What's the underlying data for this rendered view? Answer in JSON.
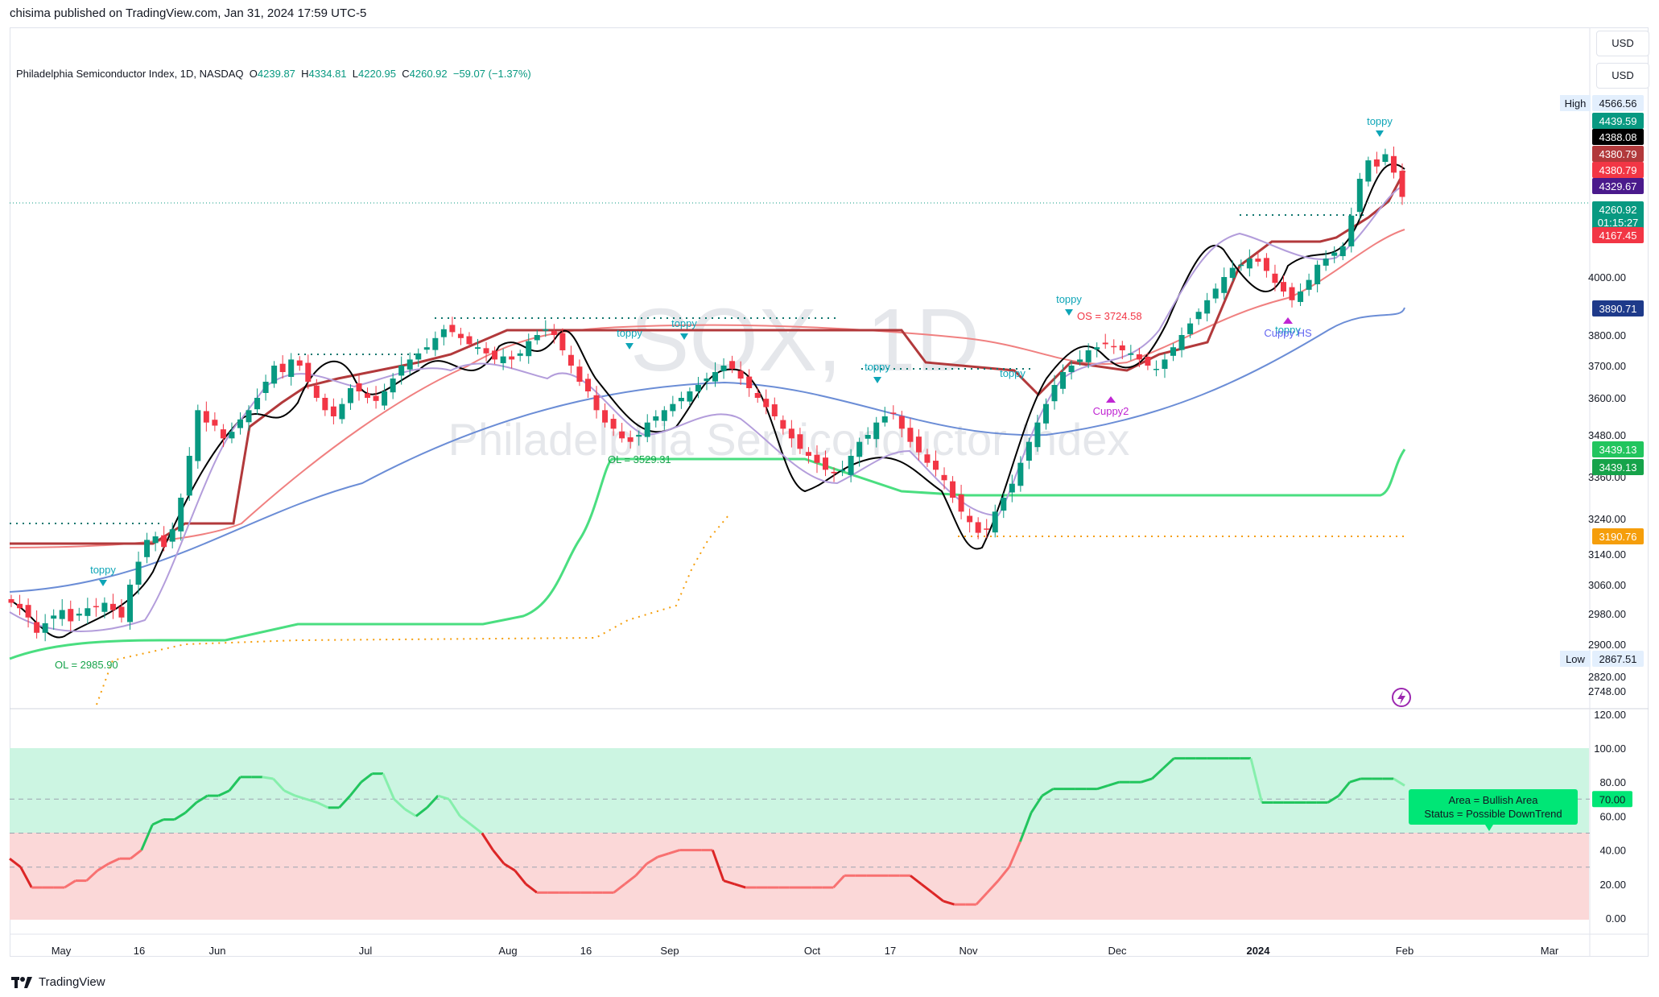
{
  "header": {
    "published": "chisima published on TradingView.com, Jan 31, 2024 17:59 UTC-5",
    "currency_1": "USD",
    "currency_2": "USD"
  },
  "legend": {
    "symbol": "Philadelphia Semiconductor Index, 1D, NASDAQ",
    "open_label": "O",
    "open": "4239.87",
    "high_label": "H",
    "high": "4334.81",
    "low_label": "L",
    "low": "4220.95",
    "close_label": "C",
    "close": "4260.92",
    "change": "−59.07 (−1.37%)"
  },
  "watermark": {
    "ticker": "SOX, 1D",
    "name": "Philadelphia Semiconductor Index"
  },
  "footer": {
    "brand": "TradingView"
  },
  "colors": {
    "up": "#089981",
    "down": "#f23645",
    "bull_area": "#ccf5e2",
    "bear_area": "#fbd8d8"
  },
  "chart_data": [
    {
      "type": "candlestick",
      "title": "SOX, 1D",
      "y_axis_ticks": [
        2748,
        2820,
        2900,
        2980,
        3060,
        3140,
        3240,
        3360,
        3480,
        3600,
        3700,
        3800,
        4000
      ],
      "y_axis_tick_labels": [
        "2748.00",
        "2820.00",
        "2900.00",
        "2980.00",
        "3060.00",
        "3140.00",
        "3240.00",
        "3360.00",
        "3480.00",
        "3600.00",
        "3700.00",
        "3800.00",
        "4000.00"
      ],
      "x_axis_labels": [
        "May",
        "16",
        "Jun",
        "Jul",
        "Aug",
        "16",
        "Sep",
        "Oct",
        "17",
        "Nov",
        "Dec",
        "2024",
        "Feb",
        "Mar"
      ],
      "price_tags": [
        {
          "label": "High",
          "value": "4566.56",
          "color": "#e3effd",
          "text": "#131722"
        },
        {
          "value": "4439.59",
          "color": "#089981",
          "text": "#ffffff"
        },
        {
          "value": "4388.08",
          "color": "#000000",
          "text": "#ffffff"
        },
        {
          "value": "4380.79",
          "color": "#b2393b",
          "text": "#ffffff"
        },
        {
          "value": "4380.79",
          "color": "#f23645",
          "text": "#ffffff"
        },
        {
          "value": "4329.67",
          "color": "#4a1a8c",
          "text": "#ffffff"
        },
        {
          "value": "4260.92",
          "sub": "01:15:27",
          "color": "#089981",
          "text": "#ffffff"
        },
        {
          "value": "4167.45",
          "color": "#f23645",
          "text": "#ffffff"
        },
        {
          "value": "3890.71",
          "color": "#1e3a8a",
          "text": "#ffffff"
        },
        {
          "value": "3439.13",
          "color": "#22c55e",
          "text": "#ffffff"
        },
        {
          "value": "3439.13",
          "color": "#16a34a",
          "text": "#ffffff"
        },
        {
          "value": "3190.76",
          "color": "#f59e0b",
          "text": "#ffffff"
        },
        {
          "label": "Low",
          "value": "2867.51",
          "color": "#e3effd",
          "text": "#131722"
        }
      ],
      "annotations": [
        "toppy",
        "toppy",
        "toppy",
        "toppy",
        "toppy",
        "toppy",
        "toppy",
        "toppy",
        "Cuppy2",
        "Cuppy HS",
        "OS = 3724.58",
        "OL = 2985.90",
        "OL = 3529.31"
      ],
      "candles": [
        3010,
        2995,
        2970,
        2930,
        2955,
        2975,
        2990,
        2960,
        2980,
        2995,
        3000,
        3010,
        2990,
        2970,
        3060,
        3120,
        3180,
        3190,
        3160,
        3210,
        3300,
        3420,
        3560,
        3520,
        3510,
        3470,
        3490,
        3530,
        3560,
        3600,
        3650,
        3700,
        3680,
        3720,
        3700,
        3650,
        3600,
        3560,
        3540,
        3580,
        3630,
        3620,
        3600,
        3590,
        3620,
        3660,
        3700,
        3720,
        3740,
        3760,
        3790,
        3820,
        3810,
        3790,
        3770,
        3760,
        3740,
        3720,
        3730,
        3720,
        3740,
        3780,
        3800,
        3820,
        3800,
        3750,
        3700,
        3650,
        3620,
        3560,
        3520,
        3500,
        3470,
        3460,
        3480,
        3520,
        3540,
        3560,
        3580,
        3600,
        3620,
        3640,
        3660,
        3680,
        3700,
        3690,
        3660,
        3630,
        3600,
        3570,
        3540,
        3500,
        3470,
        3440,
        3420,
        3400,
        3380,
        3370,
        3380,
        3420,
        3460,
        3480,
        3520,
        3540,
        3550,
        3500,
        3460,
        3430,
        3400,
        3380,
        3350,
        3300,
        3260,
        3230,
        3200,
        3210,
        3260,
        3300,
        3340,
        3400,
        3460,
        3520,
        3580,
        3640,
        3680,
        3700,
        3720,
        3750,
        3760,
        3770,
        3760,
        3750,
        3740,
        3720,
        3700,
        3690,
        3720,
        3760,
        3800,
        3840,
        3880,
        3920,
        3960,
        4000,
        4030,
        4040,
        4060,
        4050,
        4020,
        3980,
        3950,
        3920,
        3950,
        3990,
        4040,
        4060,
        4080,
        4100,
        4200,
        4320,
        4380,
        4360,
        4400,
        4340,
        4261
      ]
    },
    {
      "type": "line",
      "title": "",
      "y_axis_ticks": [
        0,
        20,
        40,
        60,
        80,
        100,
        120
      ],
      "y_axis_tick_labels": [
        "0.00",
        "20.00",
        "40.00",
        "60.00",
        "80.00",
        "100.00",
        "120.00"
      ],
      "threshold_tag": "70.00",
      "info_box": {
        "line1": "Area = Bullish Area",
        "line2": "Status =  Possible DownTrend"
      },
      "values": [
        35,
        30,
        18,
        18,
        18,
        18,
        22,
        22,
        28,
        32,
        35,
        35,
        40,
        55,
        58,
        58,
        62,
        68,
        72,
        72,
        75,
        83,
        83,
        83,
        82,
        75,
        72,
        70,
        68,
        65,
        65,
        72,
        80,
        85,
        85,
        70,
        64,
        60,
        65,
        72,
        70,
        60,
        55,
        50,
        40,
        32,
        28,
        20,
        15,
        15,
        15,
        15,
        15,
        15,
        15,
        15,
        20,
        25,
        32,
        36,
        38,
        40,
        40,
        40,
        40,
        22,
        20,
        18,
        18,
        18,
        18,
        18,
        18,
        18,
        18,
        18,
        25,
        25,
        25,
        25,
        25,
        25,
        25,
        20,
        15,
        10,
        8,
        8,
        8,
        15,
        22,
        30,
        45,
        62,
        72,
        76,
        76,
        76,
        76,
        76,
        78,
        80,
        80,
        80,
        82,
        88,
        94,
        94,
        94,
        94,
        94,
        94,
        94,
        94,
        68,
        68,
        68,
        68,
        68,
        68,
        68,
        72,
        80,
        82,
        82,
        82,
        82,
        78
      ]
    }
  ]
}
